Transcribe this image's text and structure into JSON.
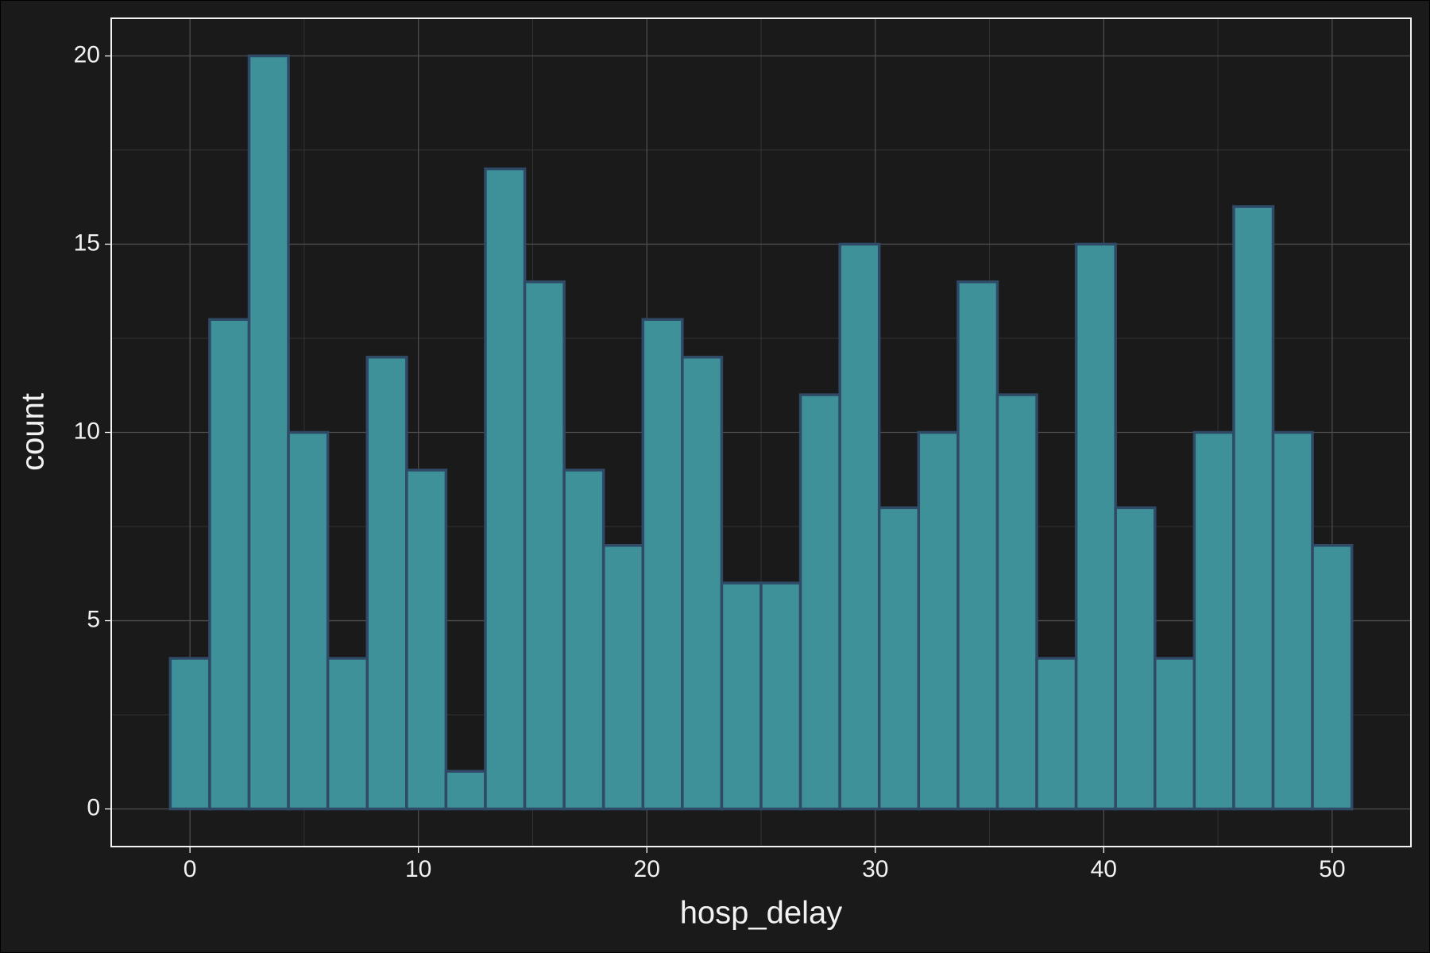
{
  "chart_data": {
    "type": "histogram",
    "x_label": "hosp_delay",
    "y_label": "count",
    "bins": [
      -0.862,
      0.862,
      2.586,
      4.31,
      6.034,
      7.759,
      9.483,
      11.207,
      12.931,
      14.655,
      16.379,
      18.103,
      19.828,
      21.552,
      23.276,
      25.0,
      26.724,
      28.448,
      30.172,
      31.897,
      33.621,
      35.345,
      37.069,
      38.793,
      40.517,
      42.241,
      43.966,
      45.69,
      47.414,
      49.138,
      50.862
    ],
    "counts": [
      4,
      13,
      20,
      10,
      4,
      12,
      9,
      1,
      17,
      14,
      9,
      7,
      13,
      12,
      6,
      6,
      11,
      15,
      8,
      10,
      14,
      11,
      4,
      15,
      8,
      4,
      10,
      16,
      10,
      7
    ],
    "color": "#3f9199",
    "edge_color": "#2f4a66",
    "xlim": [
      -3.448,
      53.448
    ],
    "ylim": [
      -1,
      21
    ],
    "xticks": [
      0,
      10,
      20,
      30,
      40,
      50
    ],
    "yticks": [
      0,
      5,
      10,
      15,
      20
    ],
    "x_minor_grid": [
      5,
      15,
      25,
      35,
      45
    ],
    "y_minor_grid": [
      2.5,
      7.5,
      12.5,
      17.5
    ],
    "grid": true
  }
}
